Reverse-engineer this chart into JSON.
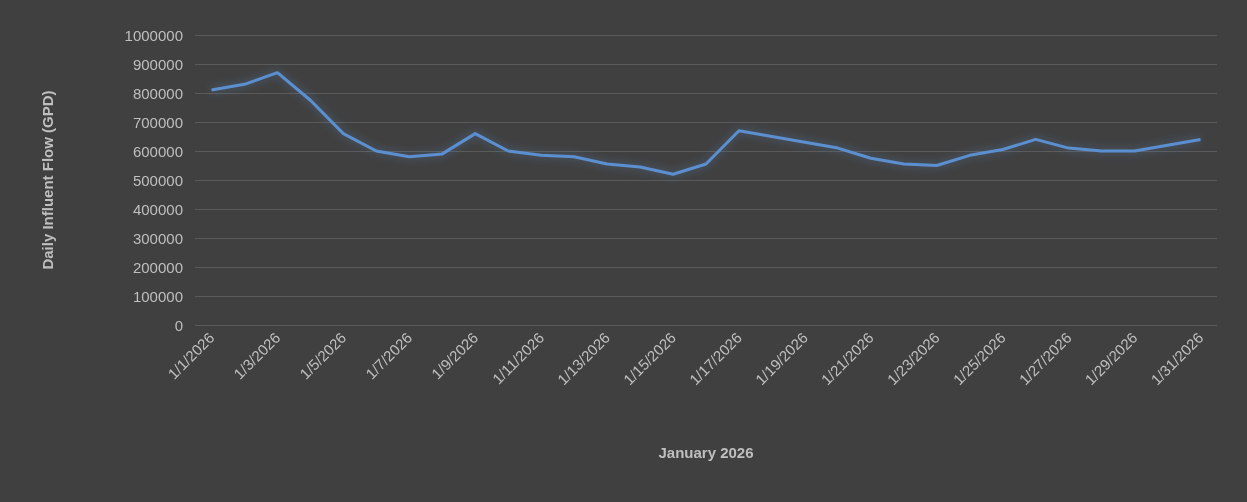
{
  "chart_data": {
    "type": "line",
    "xlabel": "January 2026",
    "ylabel": "Daily Influent Flow (GPD)",
    "categories": [
      "1/1/2026",
      null,
      "1/3/2026",
      null,
      "1/5/2026",
      null,
      "1/7/2026",
      null,
      "1/9/2026",
      null,
      "1/11/2026",
      null,
      "1/13/2026",
      null,
      "1/15/2026",
      null,
      "1/17/2026",
      null,
      "1/19/2026",
      null,
      "1/21/2026",
      null,
      "1/23/2026",
      null,
      "1/25/2026",
      null,
      "1/27/2026",
      null,
      "1/29/2026",
      null,
      "1/31/2026"
    ],
    "series": [
      {
        "color": "#5b8fd0",
        "values": [
          810000,
          830000,
          870000,
          775000,
          660000,
          600000,
          580000,
          590000,
          660000,
          600000,
          585000,
          580000,
          555000,
          545000,
          520000,
          555000,
          670000,
          650000,
          630000,
          610000,
          575000,
          555000,
          550000,
          585000,
          605000,
          640000,
          610000,
          600000,
          600000,
          620000,
          640000
        ]
      }
    ],
    "ylim": [
      0,
      1000000
    ],
    "yticks": [
      0,
      100000,
      200000,
      300000,
      400000,
      500000,
      600000,
      700000,
      800000,
      900000,
      1000000
    ],
    "grid": "y",
    "marker": "none",
    "line_style": "solid"
  }
}
